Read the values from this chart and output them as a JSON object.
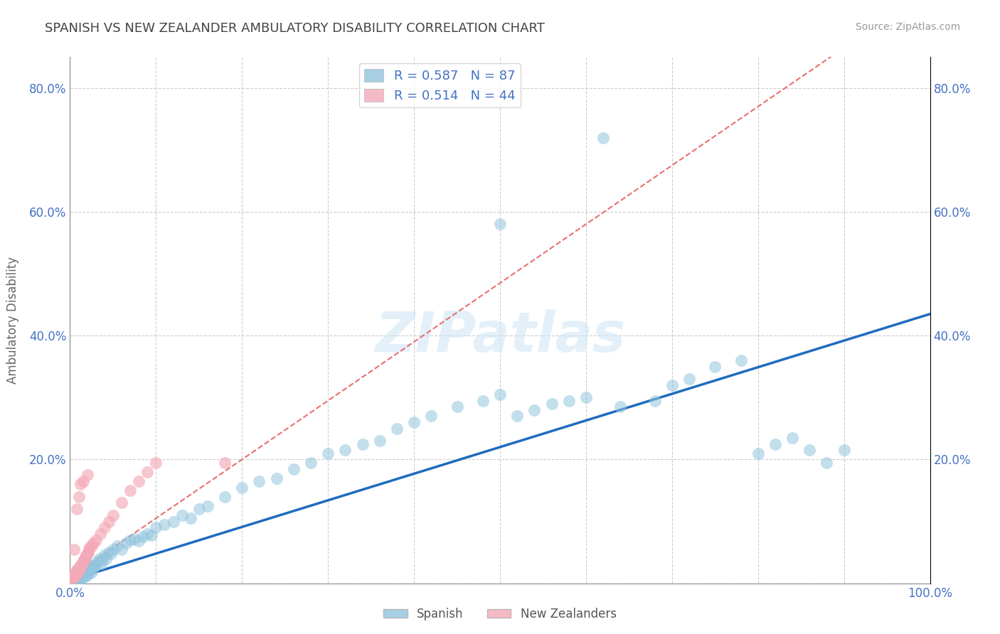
{
  "title": "SPANISH VS NEW ZEALANDER AMBULATORY DISABILITY CORRELATION CHART",
  "source": "Source: ZipAtlas.com",
  "ylabel": "Ambulatory Disability",
  "xlim": [
    0.0,
    1.0
  ],
  "ylim": [
    0.0,
    0.85
  ],
  "spanish_R": 0.587,
  "spanish_N": 87,
  "nz_R": 0.514,
  "nz_N": 44,
  "spanish_color": "#92c5de",
  "nz_color": "#f4a9b8",
  "spanish_line_color": "#1f6bbf",
  "nz_line_color": "#e87070",
  "legend_label_spanish": "Spanish",
  "legend_label_nz": "New Zealanders",
  "watermark": "ZIPatlas",
  "background_color": "#ffffff",
  "grid_color": "#c8c8c8",
  "title_color": "#444444",
  "axis_label_color": "#666666",
  "tick_label_color": "#4472c4",
  "spanish_line_slope": 0.43,
  "spanish_line_intercept": 0.005,
  "nz_line_slope": 0.95,
  "nz_line_intercept": 0.01,
  "sp_x": [
    0.005,
    0.007,
    0.008,
    0.009,
    0.01,
    0.01,
    0.011,
    0.012,
    0.013,
    0.014,
    0.015,
    0.015,
    0.016,
    0.017,
    0.018,
    0.019,
    0.02,
    0.02,
    0.021,
    0.022,
    0.023,
    0.024,
    0.025,
    0.026,
    0.027,
    0.028,
    0.03,
    0.032,
    0.034,
    0.036,
    0.038,
    0.04,
    0.042,
    0.045,
    0.048,
    0.05,
    0.055,
    0.06,
    0.065,
    0.07,
    0.075,
    0.08,
    0.085,
    0.09,
    0.095,
    0.1,
    0.11,
    0.12,
    0.13,
    0.14,
    0.15,
    0.16,
    0.18,
    0.2,
    0.22,
    0.24,
    0.26,
    0.28,
    0.3,
    0.32,
    0.34,
    0.36,
    0.38,
    0.4,
    0.42,
    0.45,
    0.48,
    0.5,
    0.52,
    0.54,
    0.56,
    0.58,
    0.6,
    0.64,
    0.68,
    0.7,
    0.72,
    0.75,
    0.78,
    0.8,
    0.82,
    0.84,
    0.86,
    0.88,
    0.9,
    0.5,
    0.62
  ],
  "sp_y": [
    0.005,
    0.008,
    0.01,
    0.008,
    0.012,
    0.005,
    0.014,
    0.01,
    0.008,
    0.015,
    0.012,
    0.018,
    0.01,
    0.015,
    0.02,
    0.012,
    0.018,
    0.025,
    0.015,
    0.022,
    0.02,
    0.025,
    0.018,
    0.03,
    0.025,
    0.028,
    0.03,
    0.035,
    0.04,
    0.032,
    0.038,
    0.045,
    0.04,
    0.05,
    0.048,
    0.055,
    0.06,
    0.055,
    0.065,
    0.07,
    0.072,
    0.068,
    0.075,
    0.08,
    0.078,
    0.09,
    0.095,
    0.1,
    0.11,
    0.105,
    0.12,
    0.125,
    0.14,
    0.155,
    0.165,
    0.17,
    0.185,
    0.195,
    0.21,
    0.215,
    0.225,
    0.23,
    0.25,
    0.26,
    0.27,
    0.285,
    0.295,
    0.305,
    0.27,
    0.28,
    0.29,
    0.295,
    0.3,
    0.285,
    0.295,
    0.32,
    0.33,
    0.35,
    0.36,
    0.21,
    0.225,
    0.235,
    0.215,
    0.195,
    0.215,
    0.58,
    0.72
  ],
  "nz_x": [
    0.002,
    0.003,
    0.004,
    0.005,
    0.005,
    0.006,
    0.007,
    0.007,
    0.008,
    0.009,
    0.01,
    0.01,
    0.011,
    0.012,
    0.013,
    0.014,
    0.015,
    0.016,
    0.017,
    0.018,
    0.019,
    0.02,
    0.021,
    0.022,
    0.023,
    0.025,
    0.027,
    0.03,
    0.035,
    0.04,
    0.045,
    0.05,
    0.06,
    0.07,
    0.08,
    0.09,
    0.1,
    0.02,
    0.015,
    0.008,
    0.005,
    0.01,
    0.18,
    0.012
  ],
  "nz_y": [
    0.008,
    0.01,
    0.012,
    0.01,
    0.015,
    0.012,
    0.015,
    0.02,
    0.018,
    0.022,
    0.02,
    0.025,
    0.022,
    0.028,
    0.03,
    0.032,
    0.035,
    0.038,
    0.04,
    0.042,
    0.045,
    0.048,
    0.05,
    0.055,
    0.058,
    0.06,
    0.065,
    0.07,
    0.08,
    0.09,
    0.1,
    0.11,
    0.13,
    0.15,
    0.165,
    0.18,
    0.195,
    0.175,
    0.165,
    0.12,
    0.055,
    0.14,
    0.195,
    0.16
  ]
}
